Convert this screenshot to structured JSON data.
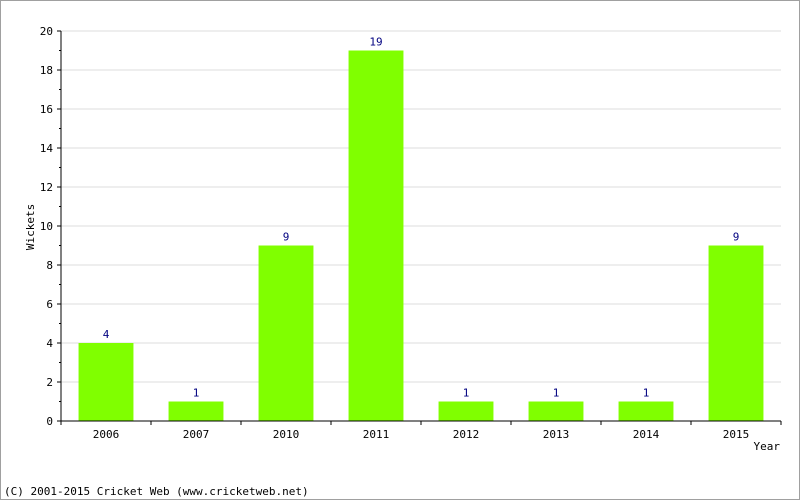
{
  "chart_data": {
    "type": "bar",
    "categories": [
      "2006",
      "2007",
      "2010",
      "2011",
      "2012",
      "2013",
      "2014",
      "2015"
    ],
    "values": [
      4,
      1,
      9,
      19,
      1,
      1,
      1,
      9
    ],
    "xlabel": "Year",
    "ylabel": "Wickets",
    "ylim": [
      0,
      20
    ],
    "yticks": [
      0,
      2,
      4,
      6,
      8,
      10,
      12,
      14,
      16,
      18,
      20
    ],
    "grid": true,
    "colors": {
      "bar": "#80ff00",
      "data_label": "#000080",
      "grid": "#dcdcdc",
      "axis": "#000000"
    }
  },
  "footer": {
    "copyright": "(C) 2001-2015 Cricket Web (www.cricketweb.net)"
  }
}
